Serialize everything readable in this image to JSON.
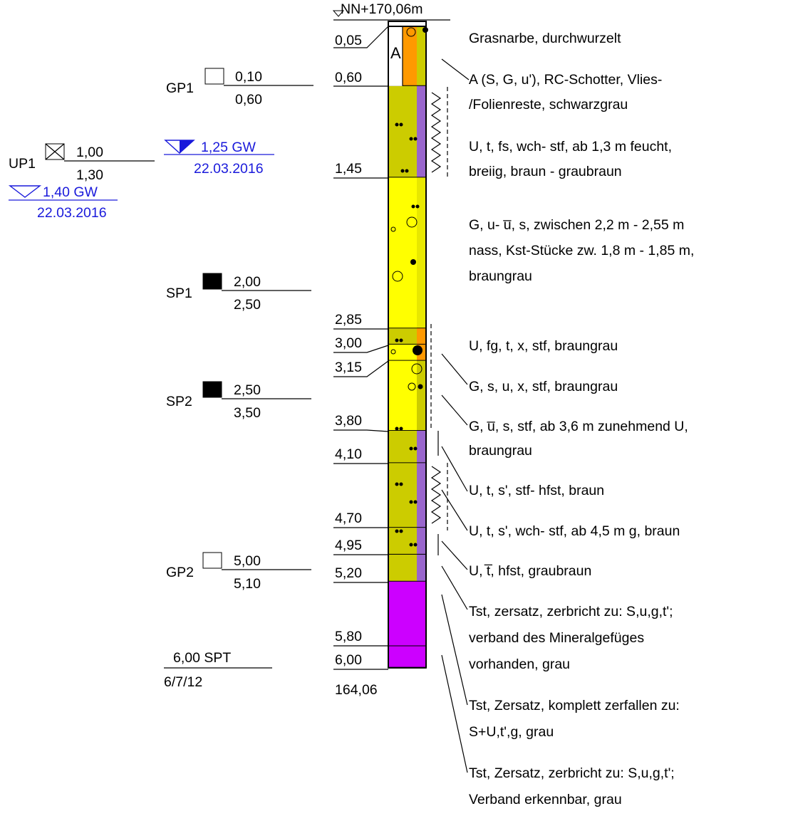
{
  "elevation_top": "NN+170,06m",
  "elevation_bottom": "164,06",
  "column_label": "A",
  "depths": [
    "0,05",
    "0,60",
    "1,45",
    "2,85",
    "3,00",
    "3,15",
    "3,80",
    "4,10",
    "4,70",
    "4,95",
    "5,20",
    "5,80",
    "6,00"
  ],
  "samples": [
    {
      "id": "GP1",
      "top": "0,10",
      "bottom": "0,60"
    },
    {
      "id": "UP1",
      "top": "1,00",
      "bottom": "1,30"
    },
    {
      "id": "SP1",
      "top": "2,00",
      "bottom": "2,50"
    },
    {
      "id": "SP2",
      "top": "2,50",
      "bottom": "3,50"
    },
    {
      "id": "GP2",
      "top": "5,00",
      "bottom": "5,10"
    }
  ],
  "spt": {
    "label": "6,00 SPT",
    "blows": "6/7/12"
  },
  "groundwater": [
    {
      "level": "1,25 GW",
      "date": "22.03.2016"
    },
    {
      "level": "1,40 GW",
      "date": "22.03.2016"
    }
  ],
  "descriptions": [
    [
      "Grasnarbe, durchwurzelt"
    ],
    [
      "A (S, G, u'), RC-Schotter, Vlies-",
      "/Folienreste, schwarzgrau"
    ],
    [
      "U, t, fs, wch- stf, ab 1,3 m feucht,",
      "breiig, braun - graubraun"
    ],
    [
      "G, u- u̅, s, zwischen 2,2 m - 2,55 m",
      "nass, Kst-Stücke zw. 1,8 m - 1,85 m,",
      "braungrau"
    ],
    [
      "U, fg, t, x, stf, braungrau"
    ],
    [
      "G, s, u, x, stf, braungrau"
    ],
    [
      "G, u̅, s, stf, ab 3,6 m zunehmend U,",
      "braungrau"
    ],
    [
      "U, t, s', stf- hfst, braun"
    ],
    [
      "U, t, s', wch- stf, ab 4,5 m g, braun"
    ],
    [
      "U, t̅, hfst, graubraun"
    ],
    [
      "Tst, zersatz, zerbricht zu: S,u,g,t';",
      "verband des Mineralgefüges",
      "vorhanden, grau"
    ],
    [
      "Tst, Zersatz, komplett zerfallen zu:",
      "S+U,t',g, grau"
    ],
    [
      "Tst, Zersatz, zerbricht zu: S,u,g,t';",
      "Verband erkennbar, grau"
    ]
  ]
}
